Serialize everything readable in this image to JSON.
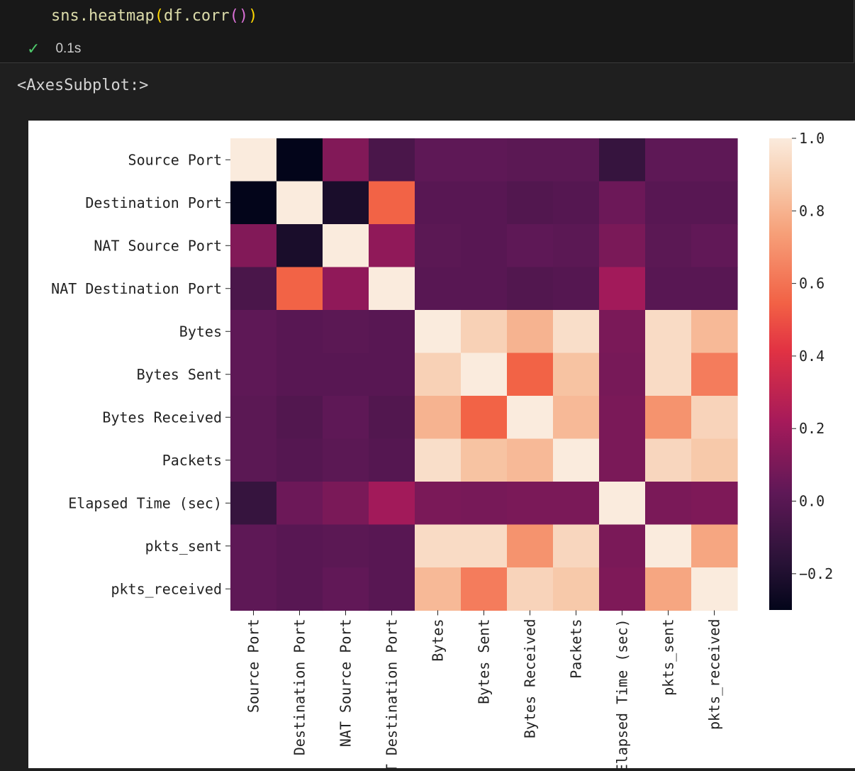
{
  "cell": {
    "code": {
      "func_name": "sns.heatmap",
      "arg_obj": "df.corr",
      "open1": "(",
      "open2": "(",
      "close2": ")",
      "close1": ")"
    },
    "status_text": "0.1s",
    "output_repr": "<AxesSubplot:>"
  },
  "chart_data": {
    "type": "heatmap",
    "title": "",
    "row_labels": [
      "Source Port",
      "Destination Port",
      "NAT Source Port",
      "NAT Destination Port",
      "Bytes",
      "Bytes Sent",
      "Bytes Received",
      "Packets",
      "Elapsed Time (sec)",
      "pkts_sent",
      "pkts_received"
    ],
    "col_labels": [
      "Source Port",
      "Destination Port",
      "NAT Source Port",
      "NAT Destination Port",
      "Bytes",
      "Bytes Sent",
      "Bytes Received",
      "Packets",
      "Elapsed Time (sec)",
      "pkts_sent",
      "pkts_received"
    ],
    "values": [
      [
        1.0,
        -0.3,
        0.12,
        -0.05,
        0.02,
        0.02,
        0.01,
        0.01,
        -0.12,
        0.02,
        0.02
      ],
      [
        -0.3,
        1.0,
        -0.22,
        0.55,
        0.0,
        0.0,
        -0.02,
        -0.01,
        0.06,
        0.0,
        0.0
      ],
      [
        0.12,
        -0.22,
        1.0,
        0.16,
        0.01,
        0.0,
        0.02,
        0.01,
        0.1,
        0.01,
        0.03
      ],
      [
        -0.05,
        0.55,
        0.16,
        1.0,
        0.0,
        0.0,
        -0.02,
        -0.01,
        0.21,
        0.0,
        0.0
      ],
      [
        0.02,
        0.0,
        0.01,
        0.0,
        1.0,
        0.9,
        0.8,
        0.95,
        0.1,
        0.94,
        0.82
      ],
      [
        0.02,
        0.0,
        0.0,
        0.0,
        0.9,
        1.0,
        0.55,
        0.85,
        0.09,
        0.94,
        0.63
      ],
      [
        0.01,
        -0.02,
        0.02,
        -0.02,
        0.8,
        0.55,
        1.0,
        0.82,
        0.1,
        0.7,
        0.91
      ],
      [
        0.01,
        -0.01,
        0.01,
        -0.01,
        0.95,
        0.85,
        0.82,
        1.0,
        0.1,
        0.92,
        0.87
      ],
      [
        -0.12,
        0.06,
        0.1,
        0.21,
        0.1,
        0.09,
        0.1,
        0.1,
        1.0,
        0.1,
        0.11
      ],
      [
        0.02,
        0.0,
        0.01,
        0.0,
        0.94,
        0.94,
        0.7,
        0.92,
        0.1,
        1.0,
        0.76
      ],
      [
        0.02,
        0.0,
        0.03,
        0.0,
        0.82,
        0.63,
        0.91,
        0.87,
        0.11,
        0.76,
        1.0
      ]
    ],
    "vmin": -0.3,
    "vmax": 1.0,
    "colormap": "rocket",
    "colorbar_ticks": [
      1.0,
      0.8,
      0.6,
      0.4,
      0.2,
      0.0,
      -0.2
    ],
    "colorbar_tick_labels": [
      "1.0",
      "0.8",
      "0.6",
      "0.4",
      "0.2",
      "0.0",
      "−0.2"
    ],
    "xlabel": "",
    "ylabel": ""
  }
}
